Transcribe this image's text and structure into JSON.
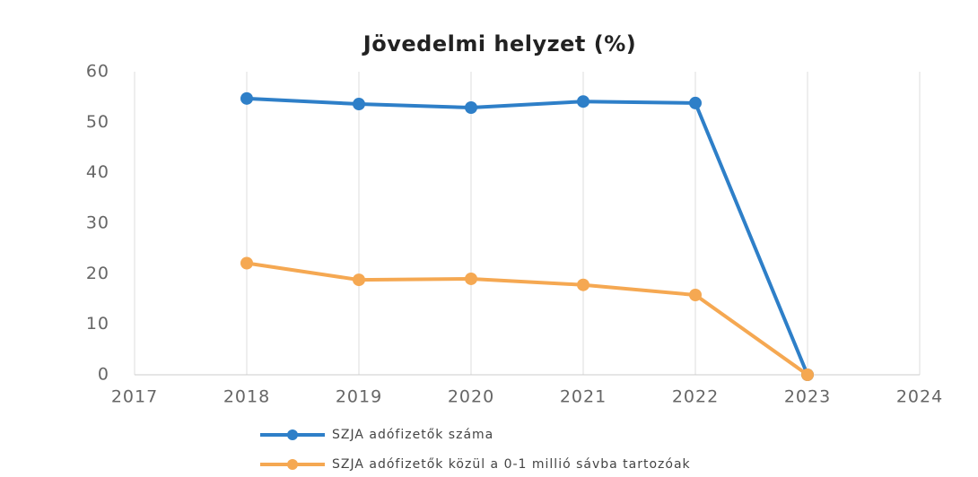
{
  "chart_data": {
    "type": "line",
    "title": "Jövedelmi helyzet (%)",
    "x": [
      2018,
      2019,
      2020,
      2021,
      2022,
      2023
    ],
    "series": [
      {
        "name": "SZJA adófizetők száma",
        "color": "#2e7fc8",
        "values": [
          54.7,
          53.6,
          52.9,
          54.1,
          53.8,
          0
        ]
      },
      {
        "name": "SZJA adófizetők közül a 0-1 millió sávba tartozóak",
        "color": "#f5a852",
        "values": [
          22.1,
          18.8,
          19.0,
          17.8,
          15.8,
          0
        ]
      }
    ],
    "xlim": [
      2017,
      2024
    ],
    "xticks": [
      2017,
      2018,
      2019,
      2020,
      2021,
      2022,
      2023,
      2024
    ],
    "ylim": [
      0,
      60
    ],
    "yticks": [
      0,
      10,
      20,
      30,
      40,
      50,
      60
    ],
    "grid": true
  }
}
